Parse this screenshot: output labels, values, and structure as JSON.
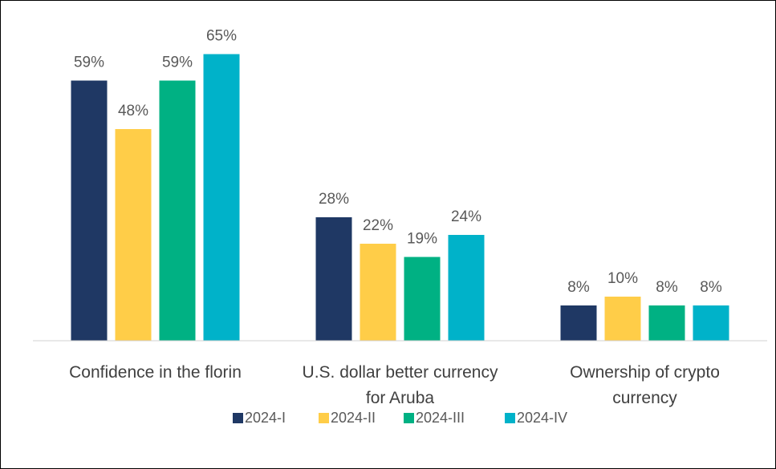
{
  "chart_data": {
    "type": "bar",
    "categories": [
      "Confidence in the florin",
      "U.S. dollar better currency for Aruba",
      "Ownership of crypto currency"
    ],
    "series": [
      {
        "name": "2024-I",
        "color": "#1f3864",
        "values": [
          59,
          28,
          8
        ],
        "value_labels": [
          "59%",
          "28%",
          "8%"
        ]
      },
      {
        "name": "2024-II",
        "color": "#ffcd48",
        "values": [
          48,
          22,
          10
        ],
        "value_labels": [
          "48%",
          "22%",
          "10%"
        ]
      },
      {
        "name": "2024-III",
        "color": "#00b183",
        "values": [
          59,
          19,
          8
        ],
        "value_labels": [
          "59%",
          "19%",
          "8%"
        ]
      },
      {
        "name": "2024-IV",
        "color": "#00b2c9",
        "values": [
          65,
          24,
          8
        ],
        "value_labels": [
          "65%",
          "24%",
          "8%"
        ]
      }
    ],
    "ylim": [
      0,
      70
    ],
    "legend": "bottom"
  }
}
